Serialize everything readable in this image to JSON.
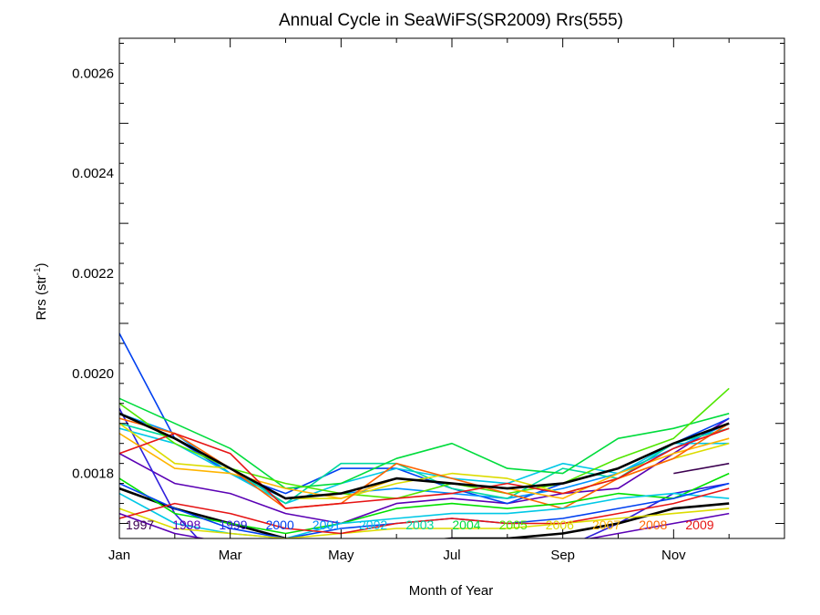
{
  "chart_data": {
    "type": "line",
    "title": "Annual Cycle in SeaWiFS(SR2009) Rrs(555)",
    "xlabel": "Month of Year",
    "ylabel_main": "Rrs (str",
    "ylabel_sup": "-1",
    "ylabel_close": ")",
    "xlim": [
      1,
      13
    ],
    "ylim": [
      0.00167,
      0.00267
    ],
    "x_ticks": [
      {
        "x": 1,
        "label": "Jan"
      },
      {
        "x": 3,
        "label": "Mar"
      },
      {
        "x": 5,
        "label": "May"
      },
      {
        "x": 7,
        "label": "Jul"
      },
      {
        "x": 9,
        "label": "Sep"
      },
      {
        "x": 11,
        "label": "Nov"
      }
    ],
    "y_ticks": [
      {
        "y": 0.0018,
        "label": "0.0018"
      },
      {
        "y": 0.002,
        "label": "0.0020"
      },
      {
        "y": 0.0022,
        "label": "0.0022"
      },
      {
        "y": 0.0024,
        "label": "0.0024"
      },
      {
        "y": 0.0026,
        "label": "0.0026"
      }
    ],
    "x": [
      1,
      2,
      3,
      4,
      5,
      6,
      7,
      8,
      9,
      10,
      11,
      12
    ],
    "grid": false,
    "legend": "bottom, inline year labels colored by series",
    "series": [
      {
        "name": "1997",
        "color": "#3c0050",
        "values": [
          null,
          null,
          null,
          null,
          null,
          null,
          null,
          null,
          null,
          null,
          0.0018,
          0.00182
        ]
      },
      {
        "name": "1998",
        "color": "#5a00b4",
        "values": [
          0.00184,
          0.00178,
          0.00176,
          0.00172,
          0.0017,
          0.00174,
          0.00175,
          0.00174,
          0.00176,
          0.00177,
          0.00184,
          0.00191
        ]
      },
      {
        "name": "1999",
        "color": "#3020dc",
        "values": [
          0.00193,
          0.00172,
          0.0016,
          0.00157,
          0.00162,
          0.00165,
          0.00166,
          0.00164,
          0.00165,
          0.0017,
          0.00176,
          0.00178
        ]
      },
      {
        "name": "2000",
        "color": "#0040f0",
        "values": [
          0.00208,
          0.00187,
          0.0018,
          0.00176,
          0.00181,
          0.00181,
          0.00177,
          0.00174,
          0.00178,
          0.00181,
          0.00186,
          0.00191
        ]
      },
      {
        "name": "2001",
        "color": "#0090ff",
        "values": [
          0.00192,
          0.00188,
          0.0018,
          0.00175,
          0.00176,
          0.00177,
          0.00176,
          0.00175,
          0.00177,
          0.0018,
          0.00185,
          0.0019
        ]
      },
      {
        "name": "2002",
        "color": "#00c8e6",
        "values": [
          0.00189,
          0.00186,
          0.0018,
          0.00174,
          0.00178,
          0.00181,
          0.00179,
          0.00178,
          0.00182,
          0.0018,
          0.00186,
          0.00186
        ]
      },
      {
        "name": "2003",
        "color": "#00d8a0",
        "values": [
          0.0019,
          0.00187,
          0.00181,
          0.00174,
          0.00182,
          0.00182,
          0.00177,
          0.00175,
          0.00181,
          0.00179,
          0.00186,
          0.00189
        ]
      },
      {
        "name": "2004",
        "color": "#00dc3c",
        "values": [
          0.00195,
          0.0019,
          0.00185,
          0.00177,
          0.00178,
          0.00183,
          0.00186,
          0.00181,
          0.0018,
          0.00187,
          0.00189,
          0.00192
        ]
      },
      {
        "name": "2005",
        "color": "#50e600",
        "values": [
          0.00194,
          0.00186,
          0.00181,
          0.00178,
          0.00176,
          0.00175,
          0.00178,
          0.00176,
          0.00178,
          0.00183,
          0.00187,
          0.00197
        ]
      },
      {
        "name": "2006",
        "color": "#dcdc00",
        "values": [
          0.0019,
          0.00182,
          0.00181,
          0.00175,
          0.00175,
          0.00178,
          0.0018,
          0.00179,
          0.00176,
          0.00179,
          0.00183,
          0.00186
        ]
      },
      {
        "name": "2007",
        "color": "#ffb400",
        "values": [
          0.00188,
          0.00181,
          0.0018,
          0.00177,
          0.00175,
          0.00179,
          0.00178,
          0.00177,
          0.00175,
          0.0018,
          0.00184,
          0.00187
        ]
      },
      {
        "name": "2008",
        "color": "#ff6400",
        "values": [
          0.00191,
          0.00188,
          0.00181,
          0.00173,
          0.00174,
          0.00182,
          0.00179,
          0.00176,
          0.00173,
          0.00179,
          0.00183,
          0.0019
        ]
      },
      {
        "name": "2009",
        "color": "#e61414",
        "values": [
          0.00184,
          0.00188,
          0.00184,
          0.00173,
          0.00174,
          0.00175,
          0.00176,
          0.00178,
          0.00176,
          0.00179,
          0.00185,
          0.00189
        ]
      },
      {
        "name": "",
        "color": "#000000",
        "values": [
          0.00192,
          0.00187,
          0.00181,
          0.00175,
          0.00176,
          0.00179,
          0.00178,
          0.00177,
          0.00178,
          0.00181,
          0.00186,
          0.0019
        ]
      },
      {
        "name": "",
        "color": "#000000",
        "values": [
          0.00177,
          0.00173,
          0.0017,
          0.00167,
          0.00165,
          0.00166,
          0.00167,
          0.00167,
          0.00168,
          0.0017,
          0.00173,
          0.00174
        ]
      },
      {
        "name": "",
        "color": "#00e000",
        "values": [
          0.00179,
          0.00172,
          0.0017,
          0.00168,
          0.0017,
          0.00173,
          0.00174,
          0.00173,
          0.00174,
          0.00176,
          0.00175,
          0.0018
        ]
      },
      {
        "name": "",
        "color": "#00c8e6",
        "values": [
          0.00176,
          0.0017,
          0.00168,
          0.00167,
          0.0017,
          0.00171,
          0.00172,
          0.00172,
          0.00173,
          0.00175,
          0.00176,
          0.00175
        ]
      },
      {
        "name": "",
        "color": "#0040f0",
        "values": [
          0.00178,
          0.00173,
          0.00169,
          0.00167,
          0.00169,
          0.0017,
          0.00171,
          0.0017,
          0.00171,
          0.00173,
          0.00175,
          0.00178
        ]
      },
      {
        "name": "",
        "color": "#dcdc00",
        "values": [
          0.00173,
          0.00169,
          0.00168,
          0.00167,
          0.00168,
          0.00169,
          0.00169,
          0.00169,
          0.0017,
          0.00171,
          0.00172,
          0.00173
        ]
      },
      {
        "name": "",
        "color": "#e61414",
        "values": [
          0.00171,
          0.00174,
          0.00172,
          0.00169,
          0.00168,
          0.0017,
          0.00171,
          0.0017,
          0.0017,
          0.00172,
          0.00174,
          0.00177
        ]
      },
      {
        "name": "",
        "color": "#5a00b4",
        "values": [
          0.00172,
          0.00168,
          0.00166,
          0.00164,
          0.00165,
          0.00166,
          0.00167,
          0.00166,
          0.00166,
          0.00168,
          0.0017,
          0.00172
        ]
      }
    ]
  }
}
